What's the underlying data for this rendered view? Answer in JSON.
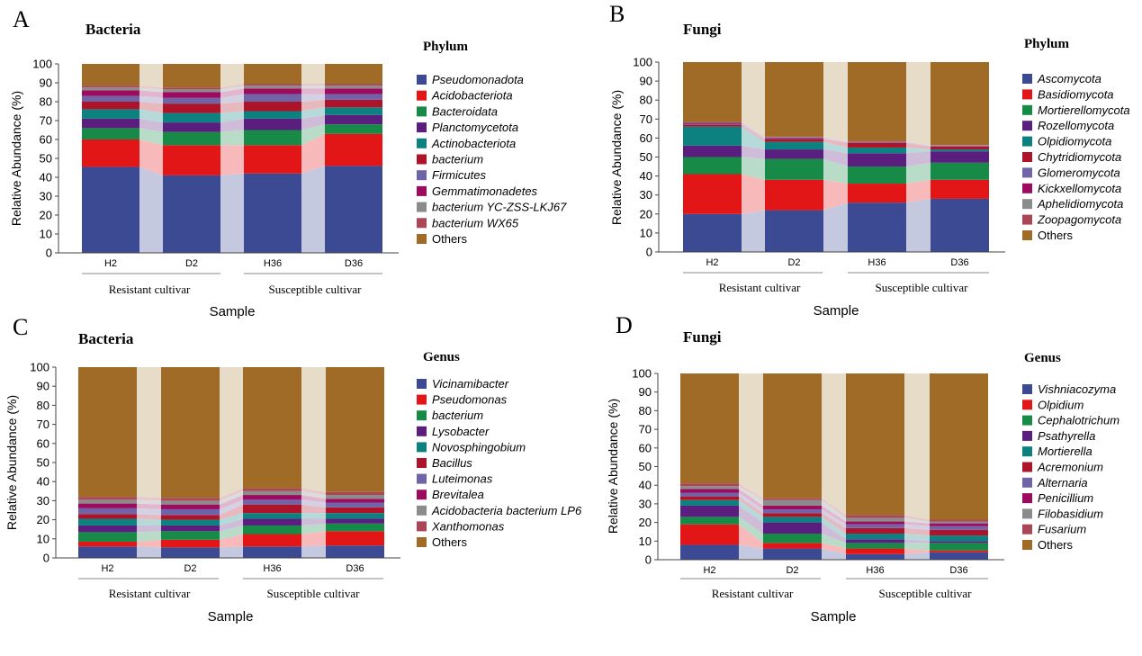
{
  "colors": [
    "#3b4a93",
    "#e31617",
    "#168a46",
    "#5a1e7e",
    "#0d8180",
    "#ae1429",
    "#6f64a8",
    "#9d0b5f",
    "#8b8b8b",
    "#ab4656",
    "#a06b26"
  ],
  "chart_data": [
    {
      "panel": "A",
      "type": "stacked-bar",
      "title": "Bacteria",
      "xlabel": "Sample",
      "ylabel": "Relative Abundance (%)",
      "ylim": [
        0,
        100
      ],
      "yticks": [
        0,
        10,
        20,
        30,
        40,
        50,
        60,
        70,
        80,
        90,
        100
      ],
      "categories": [
        "H2",
        "D2",
        "H36",
        "D36"
      ],
      "groups": [
        {
          "label": "Resistant cultivar",
          "samples": [
            "H2",
            "D2"
          ]
        },
        {
          "label": "Susceptible cultivar",
          "samples": [
            "H36",
            "D36"
          ]
        }
      ],
      "legend_title": "Phylum",
      "series": [
        {
          "name": "Pseudomonadota",
          "values": [
            45.5,
            41,
            42,
            46
          ]
        },
        {
          "name": "Acidobacteriota",
          "values": [
            14.5,
            16,
            15,
            17
          ]
        },
        {
          "name": "Bacteroidata",
          "values": [
            6,
            7,
            8,
            5
          ]
        },
        {
          "name": "Planctomycetota",
          "values": [
            5,
            5,
            6,
            5
          ]
        },
        {
          "name": "Actinobacteriota",
          "values": [
            5,
            5,
            4,
            4
          ]
        },
        {
          "name": "bacterium",
          "values": [
            4,
            5,
            5,
            4
          ]
        },
        {
          "name": "Firmicutes",
          "values": [
            3,
            3,
            4,
            3
          ]
        },
        {
          "name": "Gemmatimonadetes",
          "values": [
            3,
            3,
            3,
            3
          ]
        },
        {
          "name": "bacterium YC-ZSS-LKJ67",
          "values": [
            1.5,
            1.5,
            1.5,
            1.5
          ]
        },
        {
          "name": "bacterium WX65",
          "values": [
            1,
            1,
            1,
            1
          ]
        },
        {
          "name": "Others",
          "values": [
            11.5,
            12.5,
            10.5,
            10.5
          ]
        }
      ]
    },
    {
      "panel": "B",
      "type": "stacked-bar",
      "title": "Fungi",
      "xlabel": "Sample",
      "ylabel": "Relative Abundance (%)",
      "ylim": [
        0,
        100
      ],
      "yticks": [
        0,
        10,
        20,
        30,
        40,
        50,
        60,
        70,
        80,
        90,
        100
      ],
      "categories": [
        "H2",
        "D2",
        "H36",
        "D36"
      ],
      "groups": [
        {
          "label": "Resistant cultivar",
          "samples": [
            "H2",
            "D2"
          ]
        },
        {
          "label": "Susceptible cultivar",
          "samples": [
            "H36",
            "D36"
          ]
        }
      ],
      "legend_title": "Phylum",
      "series": [
        {
          "name": "Ascomycota",
          "values": [
            20,
            22,
            26,
            28
          ]
        },
        {
          "name": "Basidiomycota",
          "values": [
            21,
            16,
            10,
            10
          ]
        },
        {
          "name": "Mortierellomycota",
          "values": [
            9,
            11,
            9,
            9
          ]
        },
        {
          "name": "Rozellomycota",
          "values": [
            6,
            5,
            7,
            6
          ]
        },
        {
          "name": "Olpidiomycota",
          "values": [
            10,
            4,
            3,
            1
          ]
        },
        {
          "name": "Chytridiomycota",
          "values": [
            1,
            1.5,
            2.5,
            1.5
          ]
        },
        {
          "name": "Glomeromycota",
          "values": [
            0.5,
            0.5,
            0.3,
            0.3
          ]
        },
        {
          "name": "Kickxellomycota",
          "values": [
            0.5,
            0.3,
            0.2,
            0.2
          ]
        },
        {
          "name": "Aphelidiomycota",
          "values": [
            0.3,
            0.2,
            0.2,
            0.2
          ]
        },
        {
          "name": "Zoopagomycota",
          "values": [
            0.2,
            0.2,
            0.1,
            0.1
          ]
        },
        {
          "name": "Others",
          "values": [
            31.5,
            39.3,
            41.7,
            43.7
          ]
        }
      ]
    },
    {
      "panel": "C",
      "type": "stacked-bar",
      "title": "Bacteria",
      "xlabel": "Sample",
      "ylabel": "Relative Abundance (%)",
      "ylim": [
        0,
        100
      ],
      "yticks": [
        0,
        10,
        20,
        30,
        40,
        50,
        60,
        70,
        80,
        90,
        100
      ],
      "categories": [
        "H2",
        "D2",
        "H36",
        "D36"
      ],
      "groups": [
        {
          "label": "Resistant cultivar",
          "samples": [
            "H2",
            "D2"
          ]
        },
        {
          "label": "Susceptible cultivar",
          "samples": [
            "H36",
            "D36"
          ]
        }
      ],
      "legend_title": "Genus",
      "series": [
        {
          "name": "Vicinamibacter",
          "values": [
            6,
            5.5,
            6,
            6.5
          ]
        },
        {
          "name": "Pseudomonas",
          "values": [
            2.5,
            4,
            6.5,
            7.5
          ]
        },
        {
          "name": "bacterium",
          "values": [
            5,
            4.5,
            4.5,
            4
          ]
        },
        {
          "name": "Lysobacter",
          "values": [
            3.5,
            3,
            3.5,
            2.5
          ]
        },
        {
          "name": "Novosphingobium",
          "values": [
            3.5,
            3,
            3,
            3
          ]
        },
        {
          "name": "Bacillus",
          "values": [
            2.5,
            2.5,
            4.5,
            3
          ]
        },
        {
          "name": "Luteimonas",
          "values": [
            3,
            3,
            2.5,
            2.5
          ]
        },
        {
          "name": "Brevitalea",
          "values": [
            2.5,
            2.5,
            2.5,
            2
          ]
        },
        {
          "name": "Acidobacteria bacterium LP6",
          "values": [
            2,
            2,
            2,
            2
          ]
        },
        {
          "name": "Xanthomonas",
          "values": [
            1.5,
            1.5,
            1.5,
            1.5
          ]
        },
        {
          "name": "Others",
          "values": [
            68,
            68.5,
            63.5,
            65.5
          ]
        }
      ]
    },
    {
      "panel": "D",
      "type": "stacked-bar",
      "title": "Fungi",
      "xlabel": "Sample",
      "ylabel": "Relative Abundance (%)",
      "ylim": [
        0,
        100
      ],
      "yticks": [
        0,
        10,
        20,
        30,
        40,
        50,
        60,
        70,
        80,
        90,
        100
      ],
      "categories": [
        "H2",
        "D2",
        "H36",
        "D36"
      ],
      "groups": [
        {
          "label": "Resistant cultivar",
          "samples": [
            "H2",
            "D2"
          ]
        },
        {
          "label": "Susceptible cultivar",
          "samples": [
            "H36",
            "D36"
          ]
        }
      ],
      "legend_title": "Genus",
      "series": [
        {
          "name": "Vishniacozyma",
          "values": [
            8,
            6,
            3,
            4
          ]
        },
        {
          "name": "Olpidium",
          "values": [
            11,
            3,
            3,
            1
          ]
        },
        {
          "name": "Cephalotrichum",
          "values": [
            4,
            5,
            3,
            4
          ]
        },
        {
          "name": "Psathyrella",
          "values": [
            6,
            6,
            2,
            1
          ]
        },
        {
          "name": "Mortierella",
          "values": [
            3,
            3,
            3,
            3
          ]
        },
        {
          "name": "Acremonium",
          "values": [
            2,
            2,
            3,
            3
          ]
        },
        {
          "name": "Alternaria",
          "values": [
            2,
            2,
            2,
            2
          ]
        },
        {
          "name": "Penicillium",
          "values": [
            2,
            2,
            1.5,
            1.5
          ]
        },
        {
          "name": "Filobasidium",
          "values": [
            1.5,
            3,
            2,
            1
          ]
        },
        {
          "name": "Fusarium",
          "values": [
            1.5,
            1,
            1.5,
            1
          ]
        },
        {
          "name": "Others",
          "values": [
            59,
            67,
            76,
            78.5
          ]
        }
      ]
    }
  ],
  "panel_letters": [
    "A",
    "B",
    "C",
    "D"
  ]
}
